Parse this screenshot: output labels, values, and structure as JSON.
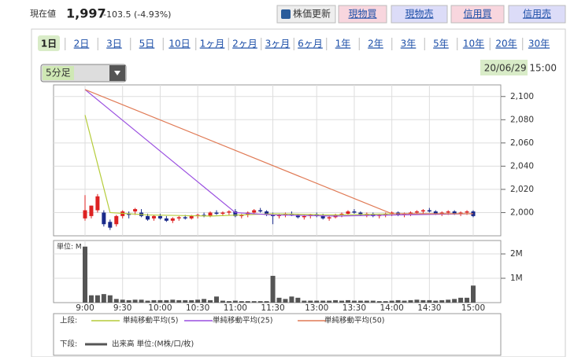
{
  "header": {
    "label": "現在値",
    "price": "1,997",
    "change": "-103.5 (-4.93%)",
    "buttons": [
      "株価更新",
      "現物買",
      "現物売",
      "信用買",
      "信用売"
    ]
  },
  "tabs": {
    "items": [
      "1日",
      "2日",
      "3日",
      "5日",
      "10日",
      "1ヶ月",
      "2ヶ月",
      "3ヶ月",
      "6ヶ月",
      "1年",
      "2年",
      "3年",
      "5年",
      "10年",
      "20年",
      "30年"
    ],
    "active": 0
  },
  "controls": {
    "interval": "5分足",
    "timestamp": "20/06/29 15:00"
  },
  "chart_data": [
    {
      "type": "candlestick",
      "legend_label": "上段:",
      "categories": [
        "9:00",
        null,
        null,
        null,
        null,
        null,
        "9:30",
        null,
        null,
        null,
        null,
        null,
        "10:00",
        null,
        null,
        null,
        null,
        null,
        "10:30",
        null,
        null,
        null,
        null,
        null,
        "11:00",
        null,
        null,
        null,
        null,
        null,
        "11:30",
        null,
        null,
        null,
        null,
        null,
        null,
        "13:00",
        null,
        null,
        null,
        null,
        null,
        "13:30",
        null,
        null,
        null,
        null,
        null,
        "14:00",
        null,
        null,
        null,
        null,
        null,
        "14:30",
        null,
        null,
        null,
        null,
        null,
        null,
        "15:00"
      ],
      "open": [
        1995,
        1997,
        2002,
        2000,
        1992,
        1990,
        1997,
        1999,
        2001,
        2000,
        1997,
        1995,
        1997,
        1995,
        1993,
        1995,
        1996,
        1995,
        1997,
        1998,
        1997,
        2000,
        1999,
        2000,
        2001,
        1997,
        1998,
        2000,
        2002,
        2001,
        1998,
        1997,
        1998,
        1999,
        1998,
        1996,
        1997,
        1998,
        1997,
        1995,
        1996,
        1998,
        1999,
        2001,
        2000,
        1998,
        1999,
        1997,
        1998,
        1999,
        2000,
        1998,
        1999,
        2000,
        2001,
        2002,
        2001,
        1999,
        2000,
        2001,
        1999,
        2000,
        2001
      ],
      "high": [
        2015,
        2006,
        2016,
        2002,
        1994,
        1998,
        2002,
        2001,
        2004,
        2003,
        1999,
        1998,
        1999,
        1997,
        1996,
        1997,
        1998,
        1998,
        1999,
        2000,
        2001,
        2002,
        2001,
        2002,
        2003,
        1999,
        2001,
        2003,
        2004,
        2002,
        2000,
        1999,
        2000,
        2001,
        1999,
        1998,
        1999,
        2000,
        1999,
        1997,
        1999,
        2000,
        2002,
        2003,
        2001,
        2000,
        2000,
        1999,
        2000,
        2001,
        2001,
        2000,
        2001,
        2002,
        2003,
        2004,
        2002,
        2001,
        2002,
        2002,
        2001,
        2002,
        2002
      ],
      "low": [
        1993,
        1995,
        2000,
        1988,
        1985,
        1988,
        1995,
        1995,
        1998,
        1996,
        1993,
        1993,
        1994,
        1992,
        1991,
        1993,
        1994,
        1994,
        1995,
        1996,
        1996,
        1998,
        1997,
        1998,
        1996,
        1995,
        1996,
        1999,
        2000,
        1997,
        1990,
        1995,
        1996,
        1997,
        1995,
        1994,
        1995,
        1996,
        1994,
        1993,
        1995,
        1996,
        1998,
        1999,
        1997,
        1996,
        1996,
        1995,
        1996,
        1997,
        1997,
        1996,
        1997,
        1998,
        1999,
        2000,
        1998,
        1997,
        1998,
        1998,
        1997,
        1998,
        1996
      ],
      "close": [
        2002,
        2006,
        2014,
        1990,
        1987,
        1997,
        2001,
        1998,
        2003,
        1997,
        1994,
        1997,
        1995,
        1993,
        1995,
        1996,
        1995,
        1997,
        1998,
        1997,
        2000,
        1999,
        2000,
        2001,
        1997,
        1998,
        2000,
        2002,
        2001,
        1998,
        1997,
        1998,
        1999,
        1998,
        1996,
        1997,
        1998,
        1997,
        1995,
        1996,
        1998,
        1999,
        2001,
        2000,
        1998,
        1999,
        1997,
        1998,
        1999,
        2000,
        1998,
        1999,
        2000,
        2001,
        2002,
        2001,
        1999,
        2000,
        2001,
        1999,
        2000,
        2001,
        1997
      ],
      "up_color": "#dd2222",
      "down_color": "#1a2a8a",
      "series": [
        {
          "name": "単純移動平均(5)",
          "color": "#b5cc3a",
          "x": [
            0,
            4,
            10,
            20,
            30,
            40,
            50,
            62
          ],
          "values": [
            2084,
            2000,
            1998,
            1997,
            1999,
            1998,
            1999,
            1999
          ]
        },
        {
          "name": "単純移動平均(25)",
          "color": "#9a4fe0",
          "x": [
            0,
            24,
            30,
            40,
            50,
            62
          ],
          "values": [
            2106,
            2000,
            1998,
            1997,
            1998,
            1999
          ]
        },
        {
          "name": "単純移動平均(50)",
          "color": "#e07a55",
          "x": [
            0,
            49,
            62
          ],
          "values": [
            2106,
            1999,
            1999
          ]
        }
      ],
      "ylim": [
        1980,
        2110
      ],
      "yticks": [
        {
          "value": 2000,
          "label": "2,000"
        },
        {
          "value": 2020,
          "label": "2,020"
        },
        {
          "value": 2040,
          "label": "2,040"
        },
        {
          "value": 2060,
          "label": "2,060"
        },
        {
          "value": 2080,
          "label": "2,080"
        },
        {
          "value": 2100,
          "label": "2,100"
        }
      ],
      "grid": true
    },
    {
      "type": "bar",
      "legend_label": "下段:",
      "unit_label": "単位: M",
      "series": [
        {
          "name": "出来高 単位:(M株/口/枚)",
          "color": "#555555",
          "values": [
            2.3,
            0.3,
            0.3,
            0.35,
            0.3,
            0.15,
            0.12,
            0.1,
            0.12,
            0.12,
            0.08,
            0.1,
            0.1,
            0.1,
            0.12,
            0.1,
            0.1,
            0.1,
            0.12,
            0.15,
            0.1,
            0.25,
            0.08,
            0.06,
            0.08,
            0.06,
            0.06,
            0.06,
            0.06,
            0.06,
            1.1,
            0.2,
            0.15,
            0.25,
            0.2,
            0.08,
            0.08,
            0.08,
            0.08,
            0.08,
            0.1,
            0.08,
            0.1,
            0.08,
            0.08,
            0.08,
            0.08,
            0.06,
            0.06,
            0.08,
            0.1,
            0.08,
            0.1,
            0.12,
            0.1,
            0.1,
            0.08,
            0.1,
            0.12,
            0.15,
            0.2,
            0.2,
            0.7
          ]
        }
      ],
      "ylim": [
        0,
        2.55
      ],
      "yticks": [
        {
          "value": 1,
          "label": "1M"
        },
        {
          "value": 2,
          "label": "2M"
        }
      ],
      "grid": true
    }
  ]
}
